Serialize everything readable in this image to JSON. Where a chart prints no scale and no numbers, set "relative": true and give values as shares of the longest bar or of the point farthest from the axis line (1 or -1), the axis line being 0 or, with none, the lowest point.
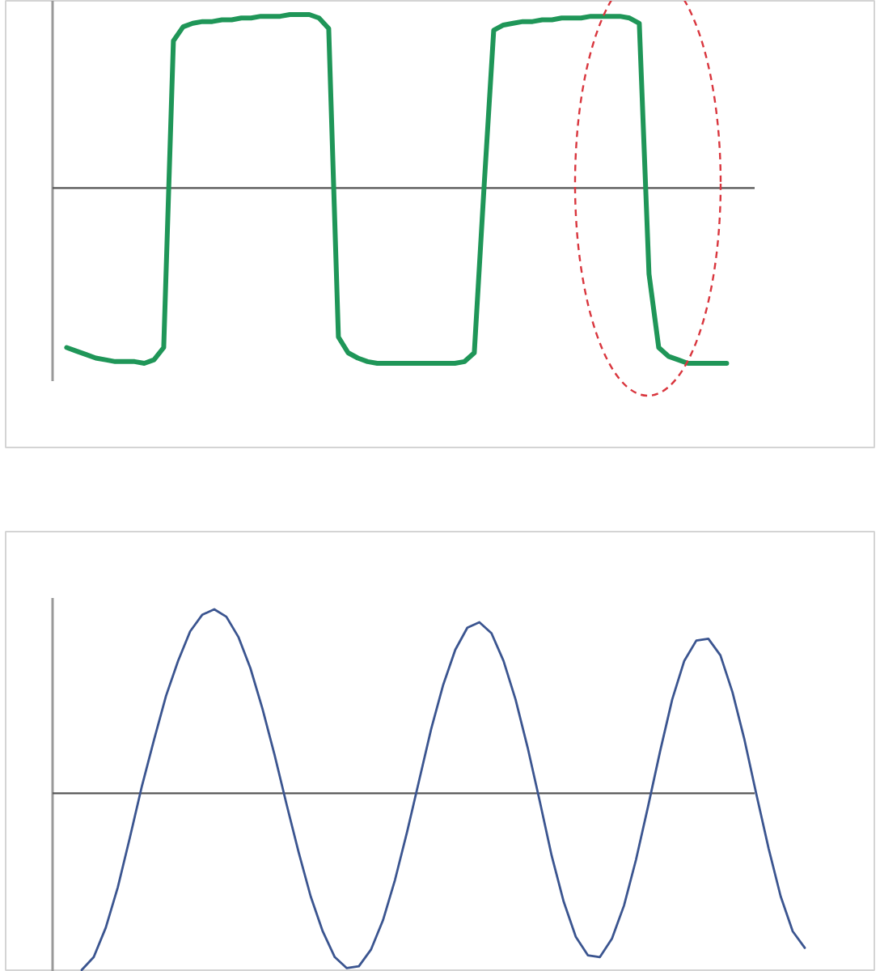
{
  "chart_data": [
    {
      "type": "line",
      "relative": true,
      "tick_labels": false,
      "categories": [
        null,
        null,
        null,
        null,
        null,
        null,
        null,
        null,
        null,
        null,
        null,
        null,
        null,
        null,
        null,
        null,
        null,
        null,
        null,
        null,
        null,
        null,
        null,
        null,
        null,
        null,
        null,
        null,
        null,
        null,
        null,
        null,
        null,
        null,
        null,
        null,
        null,
        null,
        null,
        null,
        null,
        null,
        null,
        null,
        null,
        null,
        null,
        null,
        null,
        null,
        null,
        null,
        null,
        null,
        null,
        null,
        null,
        null,
        null,
        null,
        null,
        null,
        null,
        null,
        null,
        null,
        null,
        null,
        null
      ],
      "series": [
        {
          "color": "#1f9658",
          "values": [
            -0.91,
            -0.93,
            -0.95,
            -0.97,
            -0.98,
            -0.99,
            -0.99,
            -0.99,
            -1.0,
            -0.98,
            -0.91,
            0.84,
            0.92,
            0.94,
            0.95,
            0.95,
            0.96,
            0.96,
            0.97,
            0.97,
            0.98,
            0.98,
            0.98,
            0.99,
            0.99,
            0.99,
            0.97,
            0.91,
            -0.85,
            -0.94,
            -0.97,
            -0.99,
            -1.0,
            -1.0,
            -1.0,
            -1.0,
            -1.0,
            -1.0,
            -1.0,
            -1.0,
            -1.0,
            -0.99,
            -0.94,
            0.0,
            0.9,
            0.93,
            0.94,
            0.95,
            0.95,
            0.96,
            0.96,
            0.97,
            0.97,
            0.97,
            0.98,
            0.98,
            0.98,
            0.98,
            0.97,
            0.94,
            -0.49,
            -0.91,
            -0.96,
            -0.98,
            -1.0,
            -1.0,
            -1.0,
            -1.0,
            -1.0
          ]
        }
      ]
    },
    {
      "type": "line",
      "relative": true,
      "tick_labels": false,
      "categories": [
        null,
        null,
        null,
        null,
        null,
        null,
        null,
        null,
        null,
        null,
        null,
        null,
        null,
        null,
        null,
        null,
        null,
        null,
        null,
        null,
        null,
        null,
        null,
        null,
        null,
        null,
        null,
        null,
        null,
        null,
        null,
        null,
        null,
        null,
        null,
        null,
        null,
        null,
        null,
        null,
        null,
        null,
        null,
        null,
        null,
        null,
        null,
        null,
        null,
        null,
        null,
        null,
        null,
        null,
        null,
        null,
        null,
        null,
        null,
        null,
        null
      ],
      "series": [
        {
          "color": "#3b5590",
          "values": [
            -0.96,
            -0.89,
            -0.73,
            -0.51,
            -0.24,
            0.04,
            0.29,
            0.53,
            0.72,
            0.88,
            0.97,
            1.0,
            0.96,
            0.85,
            0.68,
            0.46,
            0.21,
            -0.06,
            -0.32,
            -0.56,
            -0.75,
            -0.89,
            -0.95,
            -0.94,
            -0.85,
            -0.69,
            -0.47,
            -0.21,
            0.07,
            0.35,
            0.59,
            0.78,
            0.9,
            0.93,
            0.87,
            0.72,
            0.51,
            0.25,
            -0.04,
            -0.34,
            -0.59,
            -0.78,
            -0.88,
            -0.89,
            -0.79,
            -0.61,
            -0.36,
            -0.07,
            0.23,
            0.51,
            0.72,
            0.83,
            0.84,
            0.75,
            0.55,
            0.29,
            -0.01,
            -0.3,
            -0.56,
            -0.75,
            -0.84
          ]
        }
      ]
    }
  ]
}
